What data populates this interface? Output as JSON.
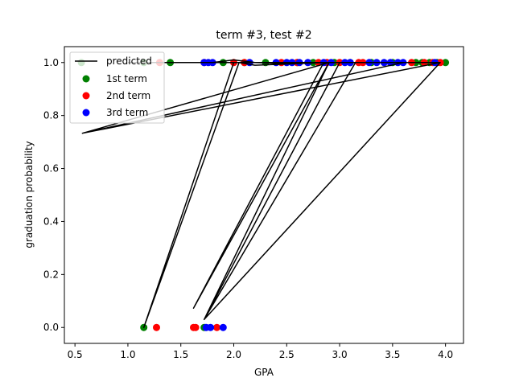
{
  "chart_data": {
    "type": "scatter",
    "title": "term #3, test #2",
    "xlabel": "GPA",
    "ylabel": "graduation probability",
    "xlim": [
      0.4,
      4.17
    ],
    "ylim": [
      -0.06,
      1.06
    ],
    "xticks": [
      "0.5",
      "1.0",
      "1.5",
      "2.0",
      "2.5",
      "3.0",
      "3.5",
      "4.0"
    ],
    "xtick_values": [
      0.5,
      1.0,
      1.5,
      2.0,
      2.5,
      3.0,
      3.5,
      4.0
    ],
    "yticks": [
      "0.0",
      "0.2",
      "0.4",
      "0.6",
      "0.8",
      "1.0"
    ],
    "ytick_values": [
      0.0,
      0.2,
      0.4,
      0.6,
      0.8,
      1.0
    ],
    "grid": false,
    "legend_position": "top-left",
    "legend": [
      "predicted",
      "1st term",
      "2nd term",
      "3rd term"
    ],
    "series": [
      {
        "name": "predicted",
        "kind": "line",
        "color": "#000000",
        "points": [
          [
            1.0,
            1.0
          ],
          [
            1.15,
            1.0
          ],
          [
            1.8,
            1.0
          ],
          [
            2.0,
            1.01
          ],
          [
            2.2,
            1.0
          ],
          [
            2.5,
            0.995
          ],
          [
            2.9,
            1.0
          ],
          [
            3.2,
            1.0
          ],
          [
            3.6,
            1.0
          ],
          [
            3.95,
            1.0
          ],
          [
            0.57,
            0.733
          ],
          [
            3.6,
            1.0
          ],
          [
            0.57,
            0.733
          ],
          [
            2.9,
            1.0
          ],
          [
            1.15,
            1.0
          ],
          [
            2.0,
            1.0
          ],
          [
            1.15,
            0.0
          ],
          [
            2.05,
            1.0
          ],
          [
            2.2,
            0.99
          ],
          [
            2.85,
            1.0
          ],
          [
            1.62,
            0.073
          ],
          [
            2.9,
            1.0
          ],
          [
            1.72,
            0.03
          ],
          [
            3.15,
            1.0
          ],
          [
            1.72,
            0.03
          ],
          [
            3.95,
            1.0
          ],
          [
            1.72,
            0.03
          ],
          [
            3.0,
            1.0
          ]
        ]
      },
      {
        "name": "1st term",
        "kind": "scatter",
        "color": "#008000",
        "points": [
          [
            0.56,
            1.0
          ],
          [
            1.15,
            1.0
          ],
          [
            1.4,
            1.0
          ],
          [
            1.9,
            1.0
          ],
          [
            2.1,
            1.0
          ],
          [
            2.3,
            1.0
          ],
          [
            2.6,
            1.0
          ],
          [
            2.75,
            1.0
          ],
          [
            2.95,
            1.0
          ],
          [
            3.1,
            1.0
          ],
          [
            3.3,
            1.0
          ],
          [
            3.5,
            1.0
          ],
          [
            3.72,
            1.0
          ],
          [
            3.78,
            1.0
          ],
          [
            3.85,
            1.0
          ],
          [
            3.92,
            1.0
          ],
          [
            4.0,
            1.0
          ],
          [
            1.15,
            0.0
          ],
          [
            1.72,
            0.0
          ]
        ]
      },
      {
        "name": "2nd term",
        "kind": "scatter",
        "color": "#ff0000",
        "points": [
          [
            1.3,
            1.0
          ],
          [
            1.72,
            1.0
          ],
          [
            2.0,
            1.0
          ],
          [
            2.1,
            1.0
          ],
          [
            2.45,
            1.0
          ],
          [
            2.6,
            1.0
          ],
          [
            2.8,
            1.0
          ],
          [
            2.88,
            1.0
          ],
          [
            3.0,
            1.0
          ],
          [
            3.18,
            1.0
          ],
          [
            3.22,
            1.0
          ],
          [
            3.68,
            1.0
          ],
          [
            3.8,
            1.0
          ],
          [
            3.88,
            1.0
          ],
          [
            3.95,
            1.0
          ],
          [
            1.27,
            0.0
          ],
          [
            1.62,
            0.0
          ],
          [
            1.64,
            0.0
          ],
          [
            1.84,
            0.0
          ]
        ]
      },
      {
        "name": "3rd term",
        "kind": "scatter",
        "color": "#0000ff",
        "points": [
          [
            1.72,
            1.0
          ],
          [
            1.76,
            1.0
          ],
          [
            1.8,
            1.0
          ],
          [
            2.15,
            1.0
          ],
          [
            2.4,
            1.0
          ],
          [
            2.5,
            1.0
          ],
          [
            2.55,
            1.0
          ],
          [
            2.62,
            1.0
          ],
          [
            2.7,
            1.0
          ],
          [
            2.85,
            1.0
          ],
          [
            2.92,
            1.0
          ],
          [
            3.05,
            1.0
          ],
          [
            3.1,
            1.0
          ],
          [
            3.28,
            1.0
          ],
          [
            3.35,
            1.0
          ],
          [
            3.42,
            1.0
          ],
          [
            3.48,
            1.0
          ],
          [
            3.55,
            1.0
          ],
          [
            3.6,
            1.0
          ],
          [
            3.9,
            1.0
          ],
          [
            1.74,
            0.0
          ],
          [
            1.78,
            0.0
          ],
          [
            1.9,
            0.0
          ]
        ]
      }
    ]
  }
}
